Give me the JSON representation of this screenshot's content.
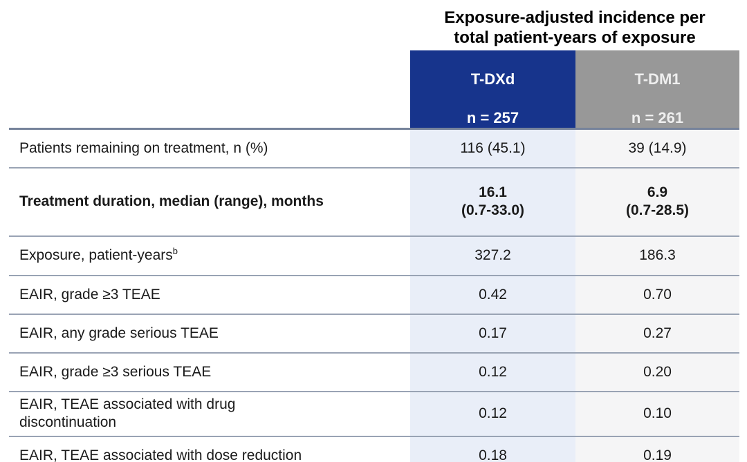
{
  "table": {
    "title": "Exposure-adjusted incidence per\ntotal patient-years of exposure",
    "columns": [
      {
        "name": "T-DXd",
        "n": "n = 257",
        "header_bg": "#17348c",
        "header_text": "#ffffff",
        "body_bg": "#e9eef8"
      },
      {
        "name": "T-DM1",
        "n": "n = 261",
        "header_bg": "#989898",
        "header_text": "#efefef",
        "body_bg": "#f5f5f6"
      }
    ],
    "rows": [
      {
        "label": "Patients remaining on treatment, n (%)",
        "sup": "",
        "tdxd": "116 (45.1)",
        "tdm1": "39 (14.9)",
        "bold": false
      },
      {
        "label": "Treatment duration, median (range), months",
        "sup": "",
        "tdxd": "16.1\n(0.7-33.0)",
        "tdm1": "6.9\n(0.7-28.5)",
        "bold": true
      },
      {
        "label": "Exposure, patient-years",
        "sup": "b",
        "tdxd": "327.2",
        "tdm1": "186.3",
        "bold": false
      },
      {
        "label": "EAIR, grade ≥3 TEAE",
        "sup": "",
        "tdxd": "0.42",
        "tdm1": "0.70",
        "bold": false
      },
      {
        "label": "EAIR, any grade serious TEAE",
        "sup": "",
        "tdxd": "0.17",
        "tdm1": "0.27",
        "bold": false
      },
      {
        "label": "EAIR, grade ≥3 serious TEAE",
        "sup": "",
        "tdxd": "0.12",
        "tdm1": "0.20",
        "bold": false
      },
      {
        "label": "EAIR, TEAE associated with drug\ndiscontinuation",
        "sup": "",
        "tdxd": "0.12",
        "tdm1": "0.10",
        "bold": false
      },
      {
        "label": "EAIR, TEAE associated with dose reduction",
        "sup": "",
        "tdxd": "0.18",
        "tdm1": "0.19",
        "bold": false
      }
    ]
  },
  "colors": {
    "blue_header": "#17348c",
    "gray_header": "#989898",
    "tdxd_column_bg": "#e9eef8",
    "tdm1_column_bg": "#f5f5f6",
    "row_divider": "#99a3b4",
    "heavy_divider": "#76839b"
  }
}
